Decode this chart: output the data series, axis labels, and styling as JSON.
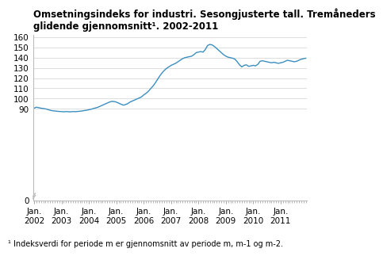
{
  "title_line1": "Omsetningsindeks for industri. Sesongjusterte tall. Trемåneders",
  "title_line2": "glidende gjennomsnitt¹. 2002-2011",
  "title": "Omsetningsindeks for industri. Sesongjusterte tall. Treåneders\nglidende gjennomsnitt¹. 2002-2011",
  "footnote": "¹ Indeksverdi for periode m er gjennomsnitt av periode m, m-1 og m-2.",
  "ylim": [
    0,
    162
  ],
  "yticks": [
    0,
    90,
    100,
    110,
    120,
    130,
    140,
    150,
    160
  ],
  "xtick_labels": [
    "Jan.\n2002",
    "Jan.\n2003",
    "Jan.\n2004",
    "Jan.\n2005",
    "Jan.\n2006",
    "Jan.\n2007",
    "Jan.\n2008",
    "Jan.\n2009",
    "Jan.\n2010",
    "Jan.\n2011"
  ],
  "line_color": "#3a8fc0",
  "background_color": "#ffffff",
  "grid_color": "#d0d0d0",
  "title_fontsize": 8.5,
  "tick_fontsize": 7.5,
  "footnote_fontsize": 7,
  "keypoints": [
    [
      0,
      90.5
    ],
    [
      1,
      91.5
    ],
    [
      2,
      91.0
    ],
    [
      3,
      90.5
    ],
    [
      4,
      90.2
    ],
    [
      5,
      89.8
    ],
    [
      6,
      89.2
    ],
    [
      7,
      88.5
    ],
    [
      8,
      88.0
    ],
    [
      9,
      87.8
    ],
    [
      10,
      87.5
    ],
    [
      11,
      87.3
    ],
    [
      12,
      87.2
    ],
    [
      13,
      87.0
    ],
    [
      14,
      87.2
    ],
    [
      15,
      87.0
    ],
    [
      16,
      87.0
    ],
    [
      17,
      87.2
    ],
    [
      18,
      87.1
    ],
    [
      19,
      87.3
    ],
    [
      20,
      87.5
    ],
    [
      21,
      87.8
    ],
    [
      22,
      88.2
    ],
    [
      23,
      88.5
    ],
    [
      24,
      89.0
    ],
    [
      25,
      89.5
    ],
    [
      26,
      90.2
    ],
    [
      27,
      90.8
    ],
    [
      28,
      91.5
    ],
    [
      29,
      92.5
    ],
    [
      30,
      93.5
    ],
    [
      31,
      94.5
    ],
    [
      32,
      95.5
    ],
    [
      33,
      96.5
    ],
    [
      34,
      97.2
    ],
    [
      35,
      97.0
    ],
    [
      36,
      96.5
    ],
    [
      37,
      95.5
    ],
    [
      38,
      94.5
    ],
    [
      39,
      93.5
    ],
    [
      40,
      94.0
    ],
    [
      41,
      95.0
    ],
    [
      42,
      96.5
    ],
    [
      43,
      97.5
    ],
    [
      44,
      98.5
    ],
    [
      45,
      99.5
    ],
    [
      46,
      100.5
    ],
    [
      47,
      101.5
    ],
    [
      48,
      103.5
    ],
    [
      49,
      105.0
    ],
    [
      50,
      107.0
    ],
    [
      51,
      109.5
    ],
    [
      52,
      112.0
    ],
    [
      53,
      115.0
    ],
    [
      54,
      118.5
    ],
    [
      55,
      122.0
    ],
    [
      56,
      125.0
    ],
    [
      57,
      127.5
    ],
    [
      58,
      129.5
    ],
    [
      59,
      131.0
    ],
    [
      60,
      132.5
    ],
    [
      61,
      133.5
    ],
    [
      62,
      134.5
    ],
    [
      63,
      136.0
    ],
    [
      64,
      137.5
    ],
    [
      65,
      139.0
    ],
    [
      66,
      140.0
    ],
    [
      67,
      140.5
    ],
    [
      68,
      141.0
    ],
    [
      69,
      141.5
    ],
    [
      70,
      143.0
    ],
    [
      71,
      145.0
    ],
    [
      72,
      145.5
    ],
    [
      73,
      146.0
    ],
    [
      74,
      145.5
    ],
    [
      75,
      148.0
    ],
    [
      76,
      152.0
    ],
    [
      77,
      153.0
    ],
    [
      78,
      152.5
    ],
    [
      79,
      151.0
    ],
    [
      80,
      149.0
    ],
    [
      81,
      147.0
    ],
    [
      82,
      145.0
    ],
    [
      83,
      143.0
    ],
    [
      84,
      141.5
    ],
    [
      85,
      140.5
    ],
    [
      86,
      140.0
    ],
    [
      87,
      139.5
    ],
    [
      88,
      138.5
    ],
    [
      89,
      136.0
    ],
    [
      90,
      133.0
    ],
    [
      91,
      131.0
    ],
    [
      92,
      132.5
    ],
    [
      93,
      133.0
    ],
    [
      94,
      131.5
    ],
    [
      95,
      132.0
    ],
    [
      96,
      132.5
    ],
    [
      97,
      132.0
    ],
    [
      98,
      133.5
    ],
    [
      99,
      136.5
    ],
    [
      100,
      137.0
    ],
    [
      101,
      136.5
    ],
    [
      102,
      136.0
    ],
    [
      103,
      135.5
    ],
    [
      104,
      135.0
    ],
    [
      105,
      135.5
    ],
    [
      106,
      135.0
    ],
    [
      107,
      134.5
    ],
    [
      108,
      135.0
    ],
    [
      109,
      135.5
    ],
    [
      110,
      136.5
    ],
    [
      111,
      137.5
    ],
    [
      112,
      137.0
    ],
    [
      113,
      136.5
    ],
    [
      114,
      136.0
    ],
    [
      115,
      136.5
    ],
    [
      116,
      137.5
    ],
    [
      117,
      138.5
    ],
    [
      118,
      139.0
    ],
    [
      119,
      139.5
    ]
  ]
}
